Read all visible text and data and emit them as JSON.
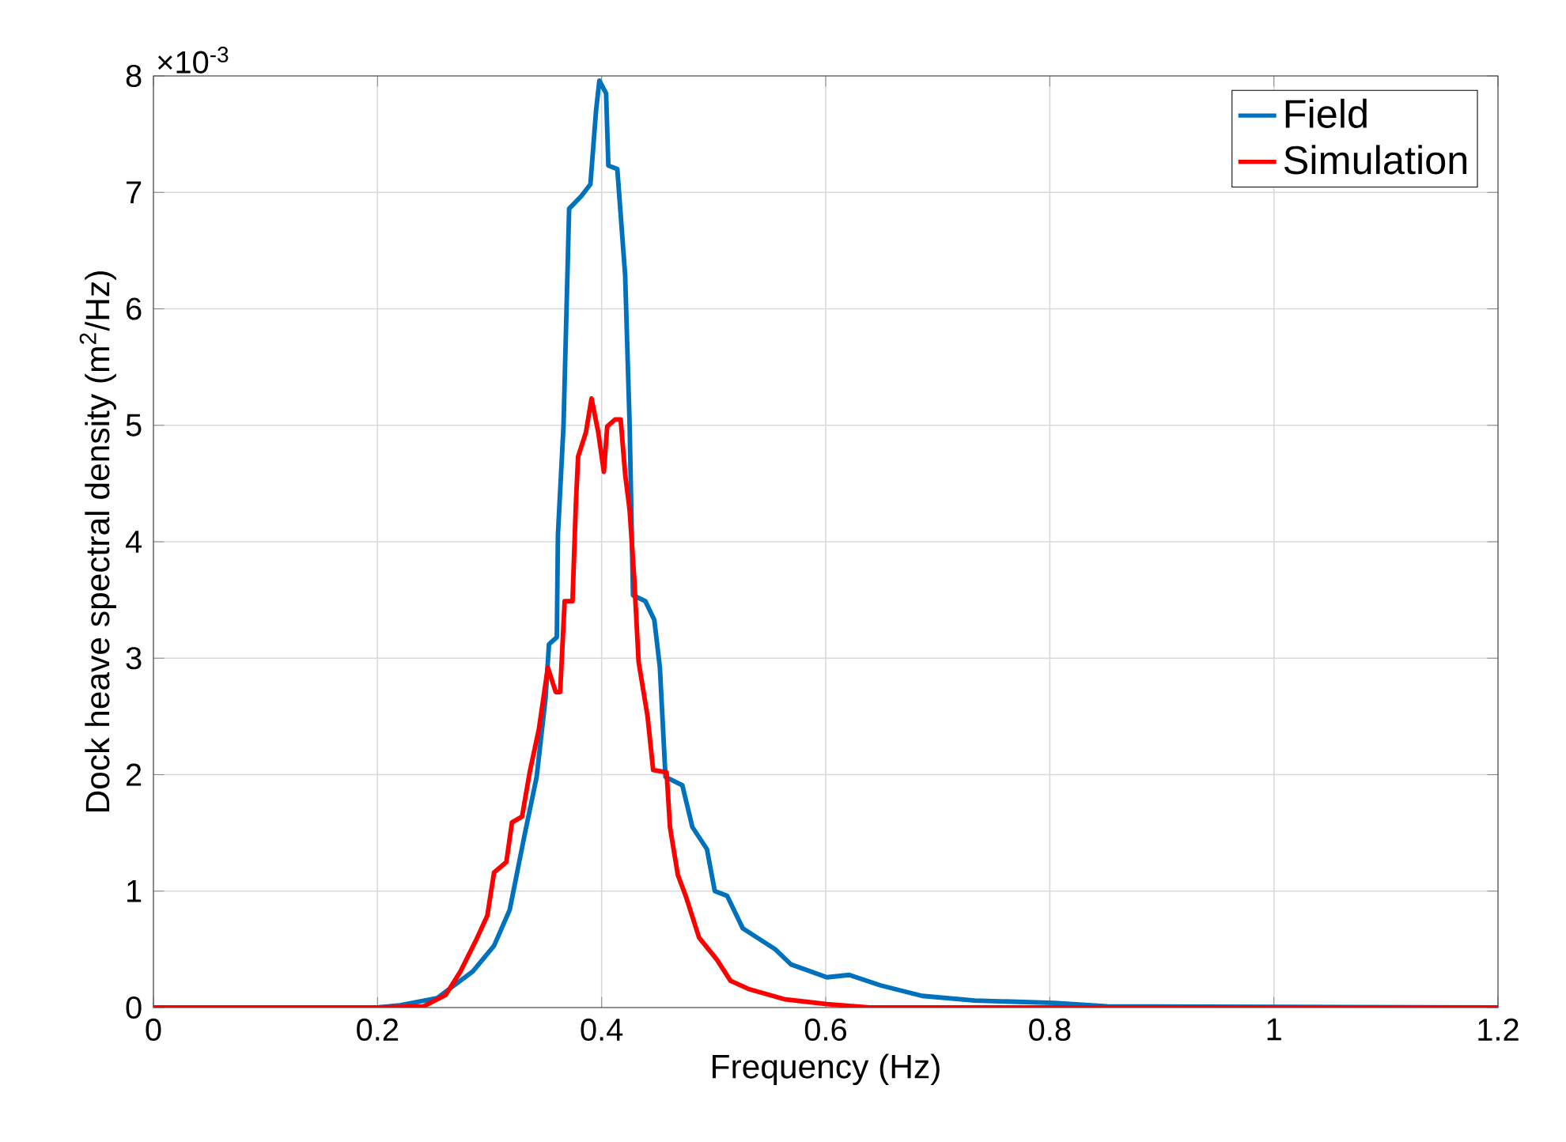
{
  "chart_data": {
    "type": "line",
    "xlabel": "Frequency (Hz)",
    "ylabel": "Dock heave spectral density (m$^{2}$/Hz)",
    "annotations": [
      "×10$^{-3}$"
    ],
    "xlim": [
      0,
      1.2
    ],
    "xticks": [
      0,
      0.2,
      0.4,
      0.6,
      0.8,
      1,
      1.2
    ],
    "ylim": [
      0,
      8
    ],
    "yticks": [
      0,
      1,
      2,
      3,
      4,
      5,
      6,
      7,
      8
    ],
    "grid": true,
    "legend": "top right",
    "line_style": "solid",
    "marker": "none",
    "series": [
      {
        "name": "Field",
        "color": "#0072bd",
        "x": [
          0,
          0.2,
          0.22,
          0.253,
          0.285,
          0.304,
          0.318,
          0.331,
          0.342,
          0.35,
          0.353,
          0.36,
          0.361,
          0.366,
          0.371,
          0.382,
          0.39,
          0.395,
          0.398,
          0.404,
          0.406,
          0.414,
          0.417,
          0.421,
          0.425,
          0.428,
          0.439,
          0.447,
          0.452,
          0.457,
          0.472,
          0.481,
          0.494,
          0.501,
          0.512,
          0.526,
          0.555,
          0.569,
          0.601,
          0.621,
          0.649,
          0.686,
          0.733,
          0.804,
          0.851,
          1.2
        ],
        "values": [
          0,
          0,
          0.02,
          0.08,
          0.31,
          0.53,
          0.84,
          1.47,
          1.98,
          2.66,
          3.12,
          3.18,
          4.06,
          5.0,
          6.86,
          6.97,
          7.07,
          7.7,
          7.96,
          7.85,
          7.23,
          7.2,
          6.81,
          6.29,
          5.0,
          3.54,
          3.49,
          3.33,
          2.92,
          1.98,
          1.91,
          1.55,
          1.36,
          1.0,
          0.96,
          0.68,
          0.5,
          0.37,
          0.26,
          0.28,
          0.19,
          0.1,
          0.06,
          0.04,
          0.01,
          0
        ]
      },
      {
        "name": "Simulation",
        "color": "#ff0000",
        "x": [
          0,
          0.2,
          0.241,
          0.261,
          0.274,
          0.288,
          0.298,
          0.304,
          0.315,
          0.32,
          0.329,
          0.336,
          0.344,
          0.352,
          0.359,
          0.363,
          0.367,
          0.374,
          0.377,
          0.379,
          0.386,
          0.391,
          0.397,
          0.402,
          0.405,
          0.412,
          0.417,
          0.421,
          0.425,
          0.429,
          0.433,
          0.441,
          0.446,
          0.458,
          0.461,
          0.468,
          0.475,
          0.487,
          0.503,
          0.515,
          0.531,
          0.564,
          0.601,
          0.639,
          1.2
        ],
        "values": [
          0,
          0,
          0.01,
          0.11,
          0.31,
          0.58,
          0.79,
          1.16,
          1.25,
          1.59,
          1.64,
          2.03,
          2.39,
          2.92,
          2.71,
          2.71,
          3.49,
          3.49,
          4.32,
          4.73,
          4.94,
          5.23,
          4.94,
          4.6,
          4.99,
          5.05,
          5.05,
          4.58,
          4.27,
          3.7,
          2.97,
          2.5,
          2.04,
          2.02,
          1.55,
          1.14,
          0.96,
          0.6,
          0.41,
          0.23,
          0.16,
          0.07,
          0.03,
          0,
          0
        ]
      }
    ]
  }
}
